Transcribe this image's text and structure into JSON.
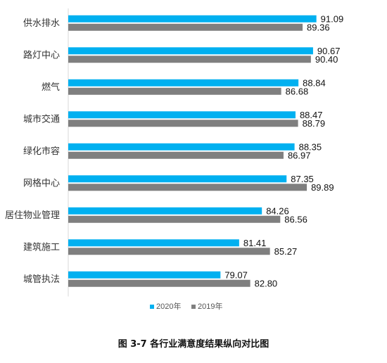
{
  "caption": "图 3-7 各行业满意度结果纵向对比图",
  "chart_data": {
    "type": "bar",
    "orientation": "horizontal",
    "categories": [
      "供水排水",
      "路灯中心",
      "燃气",
      "城市交通",
      "绿化市容",
      "网格中心",
      "居住物业管理",
      "建筑施工",
      "城管执法"
    ],
    "series": [
      {
        "name": "2020年",
        "color": "#00B0F0",
        "values": [
          91.09,
          90.67,
          88.84,
          88.47,
          88.35,
          87.35,
          84.26,
          81.41,
          79.07
        ]
      },
      {
        "name": "2019年",
        "color": "#7F7F7F",
        "values": [
          89.36,
          90.4,
          86.68,
          88.79,
          86.97,
          89.89,
          86.56,
          85.27,
          82.8
        ]
      }
    ],
    "value_labels": {
      "2020年": [
        "91.09",
        "90.67",
        "88.84",
        "88.47",
        "88.35",
        "87.35",
        "84.26",
        "81.41",
        "79.07"
      ],
      "2019年": [
        "89.36",
        "90.40",
        "86.68",
        "88.79",
        "86.97",
        "89.89",
        "86.56",
        "85.27",
        "82.80"
      ]
    },
    "xlim": [
      60,
      92
    ],
    "axis_visible": false,
    "grid": false,
    "legend": {
      "position": "bottom-center",
      "entries": [
        "2020年",
        "2019年"
      ]
    }
  }
}
